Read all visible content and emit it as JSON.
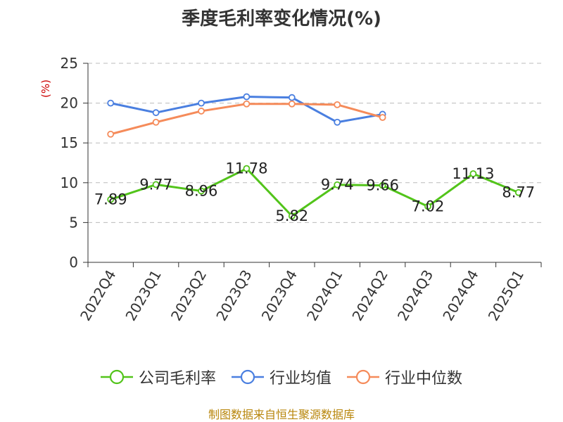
{
  "chart_data": {
    "type": "line",
    "title": "季度毛利率变化情况(%)",
    "ylabel": "(%)",
    "xlabel": "",
    "ylim": [
      0,
      25
    ],
    "yticks": [
      0,
      5,
      10,
      15,
      20,
      25
    ],
    "grid": true,
    "legend_position": "bottom",
    "categories": [
      "2022Q4",
      "2023Q1",
      "2023Q2",
      "2023Q3",
      "2023Q4",
      "2024Q1",
      "2024Q2",
      "2024Q3",
      "2024Q4",
      "2025Q1"
    ],
    "series": [
      {
        "name": "公司毛利率",
        "color": "#52c41a",
        "show_labels": true,
        "values": [
          7.89,
          9.77,
          8.96,
          11.78,
          5.82,
          9.74,
          9.66,
          7.02,
          11.13,
          8.77
        ],
        "labels": [
          "7.89",
          "9.77",
          "8.96",
          "11.78",
          "5.82",
          "9.74",
          "9.66",
          "7.02",
          "11.13",
          "8.77"
        ]
      },
      {
        "name": "行业均值",
        "color": "#4a7fe0",
        "show_labels": false,
        "values": [
          20.0,
          18.8,
          20.0,
          20.8,
          20.7,
          17.6,
          18.6,
          null,
          null,
          null
        ]
      },
      {
        "name": "行业中位数",
        "color": "#f58b5a",
        "show_labels": false,
        "values": [
          16.1,
          17.6,
          19.0,
          19.9,
          19.9,
          19.8,
          18.2,
          null,
          null,
          null
        ]
      }
    ]
  },
  "source": "制图数据来自恒生聚源数据库"
}
